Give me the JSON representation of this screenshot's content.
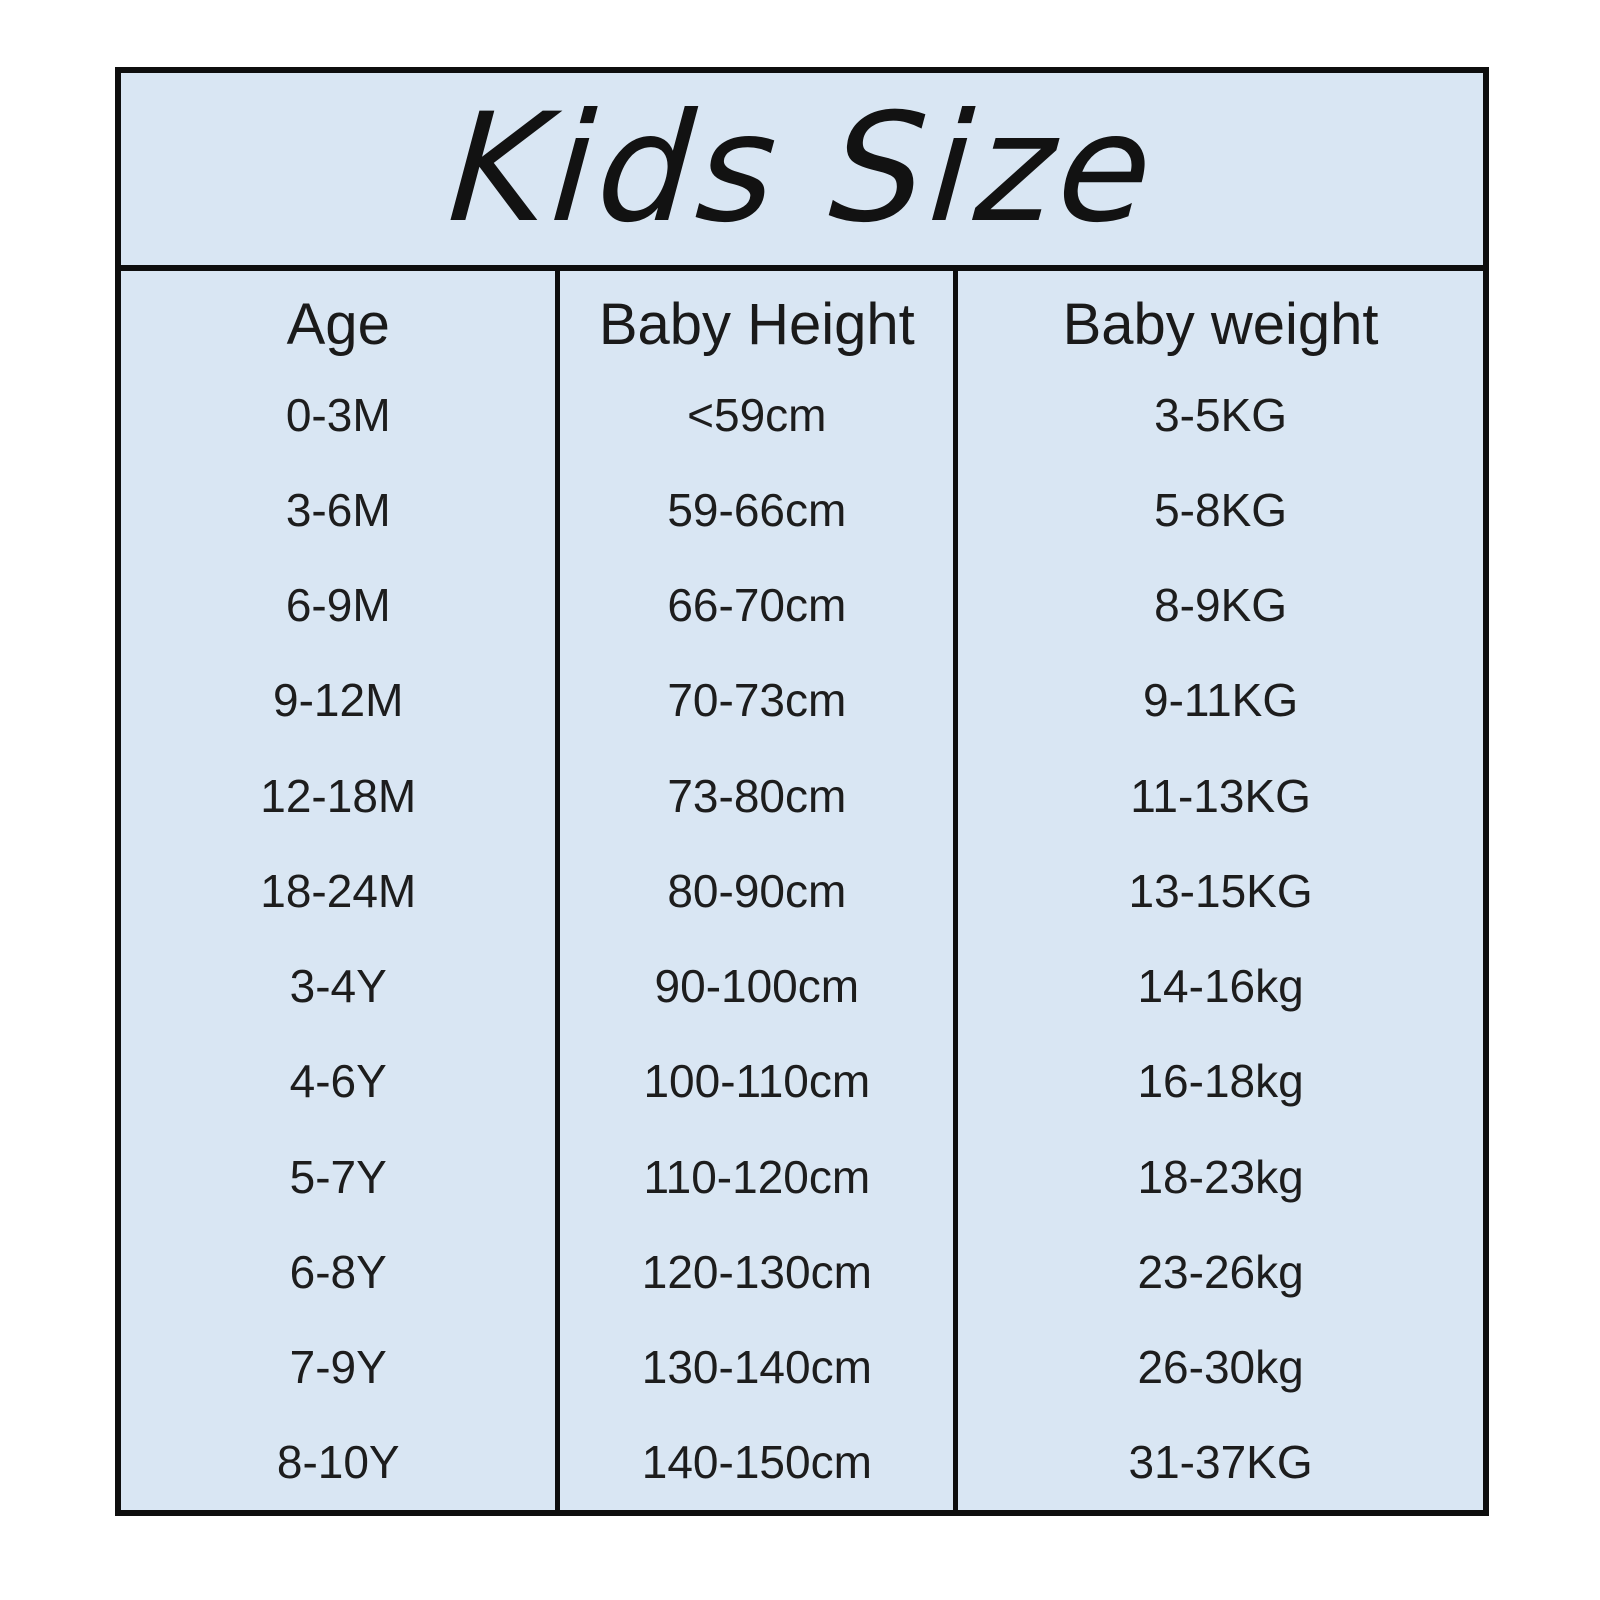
{
  "chart_data": {
    "type": "table",
    "title": "Kids Size",
    "columns": [
      "Age",
      "Baby Height",
      "Baby weight"
    ],
    "rows": [
      [
        "0-3M",
        "<59cm",
        "3-5KG"
      ],
      [
        "3-6M",
        "59-66cm",
        "5-8KG"
      ],
      [
        "6-9M",
        "66-70cm",
        "8-9KG"
      ],
      [
        "9-12M",
        "70-73cm",
        "9-11KG"
      ],
      [
        "12-18M",
        "73-80cm",
        "11-13KG"
      ],
      [
        "18-24M",
        "80-90cm",
        "13-15KG"
      ],
      [
        "3-4Y",
        "90-100cm",
        "14-16kg"
      ],
      [
        "4-6Y",
        "100-110cm",
        "16-18kg"
      ],
      [
        "5-7Y",
        "110-120cm",
        "18-23kg"
      ],
      [
        "6-8Y",
        "120-130cm",
        "23-26kg"
      ],
      [
        "7-9Y",
        "130-140cm",
        "26-30kg"
      ],
      [
        "8-10Y",
        "140-150cm",
        "31-37KG"
      ]
    ]
  },
  "colors": {
    "table_background": "#d9e6f3",
    "border": "#0e0e0e",
    "text": "#1a1a1a",
    "page_background": "#ffffff"
  }
}
